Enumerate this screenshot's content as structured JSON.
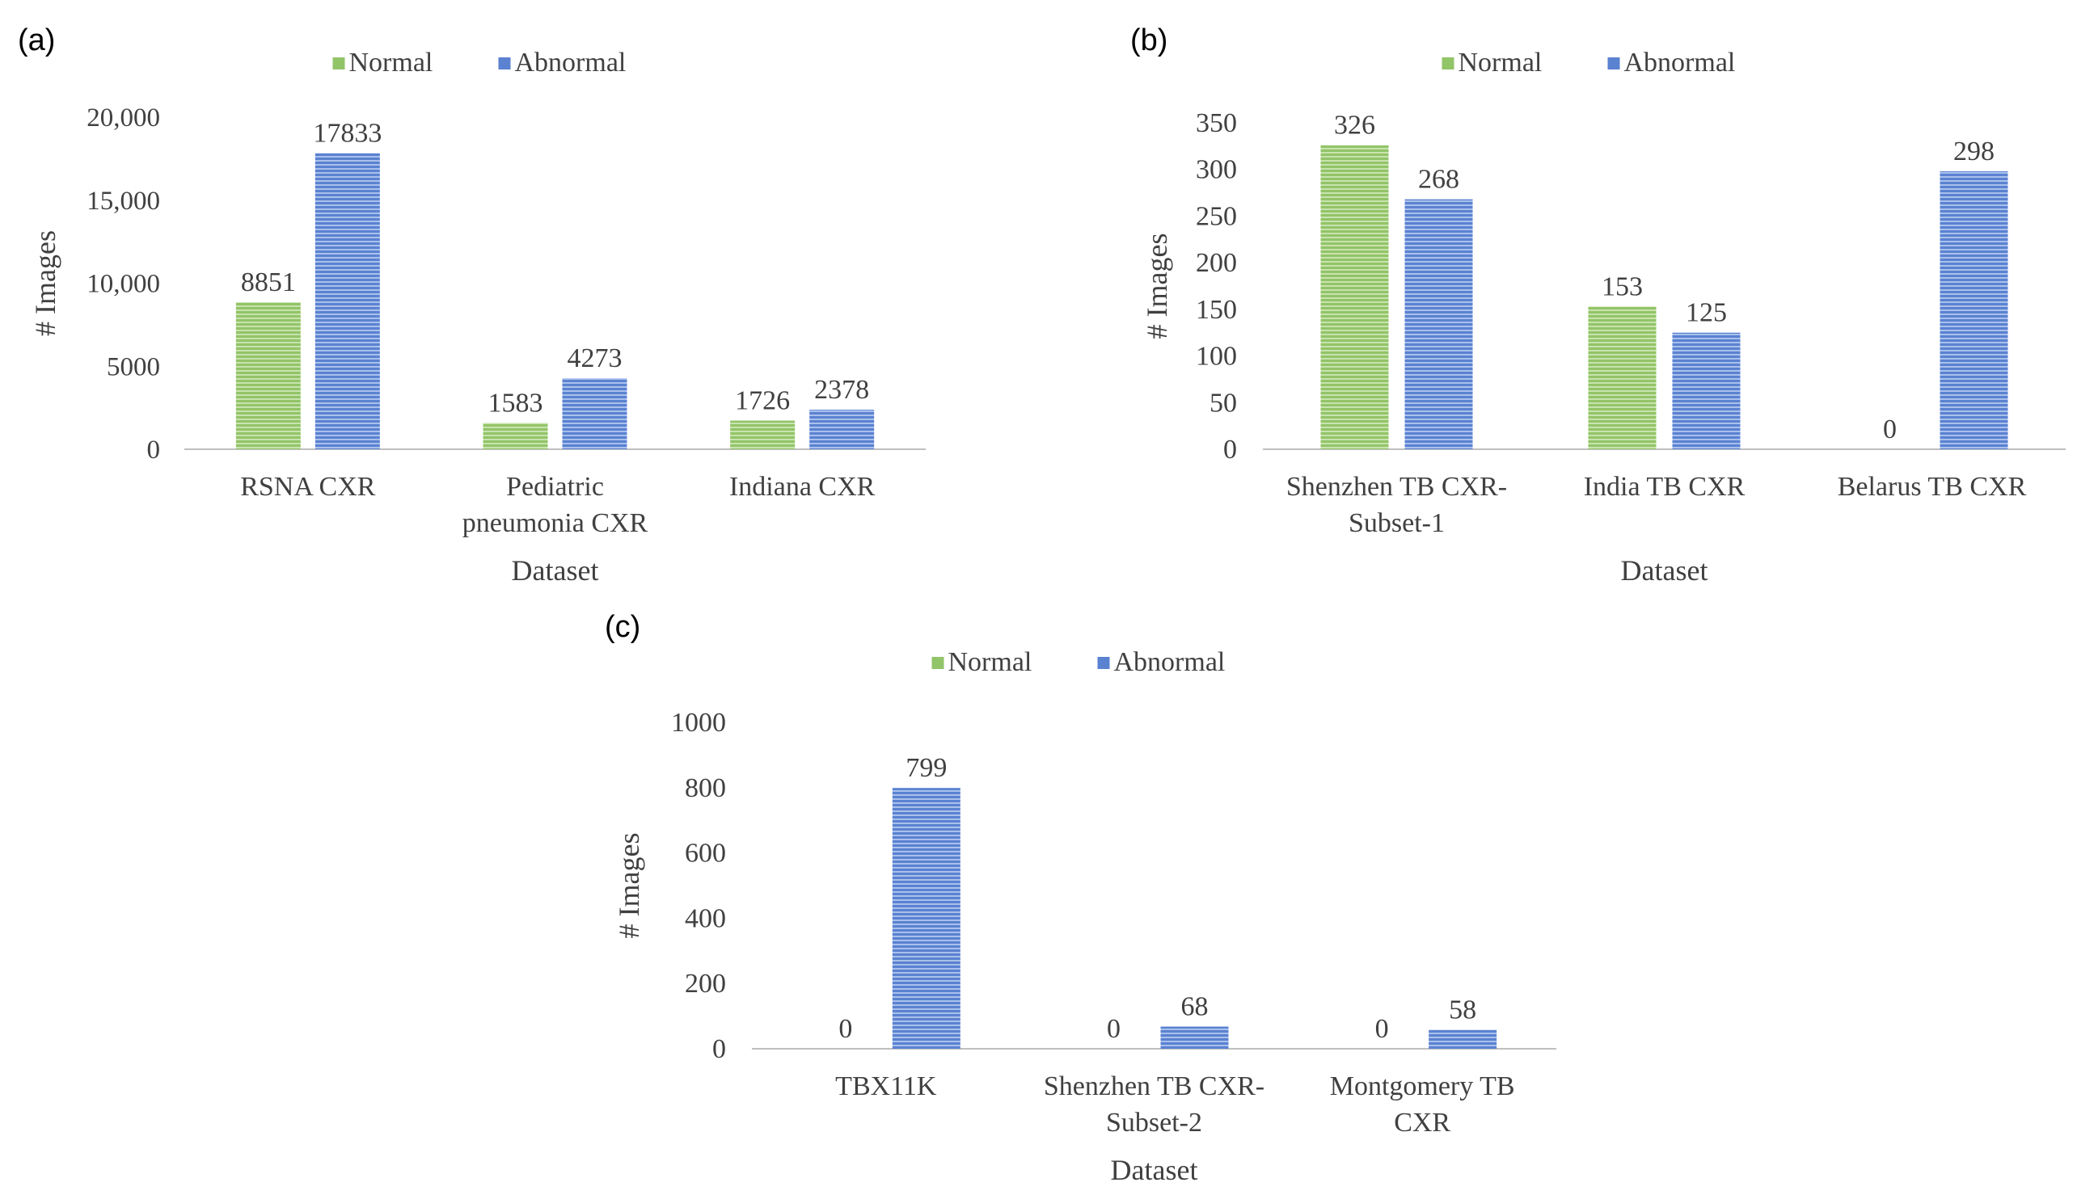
{
  "colors": {
    "normal": "#92c468",
    "abnormal": "#5b82d1",
    "normal_stripe": "#c8e3ae",
    "abnormal_stripe": "#a9c0ec",
    "axis": "#bfbfbf",
    "text": "#404040"
  },
  "chart_data": [
    {
      "panel": "(a)",
      "type": "bar",
      "title": "",
      "xlabel": "Dataset",
      "ylabel": "# Images",
      "ylim": [
        0,
        20000
      ],
      "yticks": [
        0,
        5000,
        10000,
        15000,
        20000
      ],
      "ytick_labels": [
        "0",
        "5000",
        "10,000",
        "15,000",
        "20,000"
      ],
      "categories": [
        [
          "RSNA CXR"
        ],
        [
          "Pediatric",
          "pneumonia CXR"
        ],
        [
          "Indiana CXR"
        ]
      ],
      "series": [
        {
          "name": "Normal",
          "values": [
            8851,
            1583,
            1726
          ]
        },
        {
          "name": "Abnormal",
          "values": [
            17833,
            4273,
            2378
          ]
        }
      ],
      "legend": "top-center"
    },
    {
      "panel": "(b)",
      "type": "bar",
      "title": "",
      "xlabel": "Dataset",
      "ylabel": "# Images",
      "ylim": [
        0,
        350
      ],
      "yticks": [
        0,
        50,
        100,
        150,
        200,
        250,
        300,
        350
      ],
      "ytick_labels": [
        "0",
        "50",
        "100",
        "150",
        "200",
        "250",
        "300",
        "350"
      ],
      "categories": [
        [
          "Shenzhen TB CXR-",
          "Subset-1"
        ],
        [
          "India TB CXR"
        ],
        [
          "Belarus TB CXR"
        ]
      ],
      "series": [
        {
          "name": "Normal",
          "values": [
            326,
            153,
            0
          ]
        },
        {
          "name": "Abnormal",
          "values": [
            268,
            125,
            298
          ]
        }
      ],
      "legend": "top-center"
    },
    {
      "panel": "(c)",
      "type": "bar",
      "title": "",
      "xlabel": "Dataset",
      "ylabel": "# Images",
      "ylim": [
        0,
        1000
      ],
      "yticks": [
        0,
        200,
        400,
        600,
        800,
        1000
      ],
      "ytick_labels": [
        "0",
        "200",
        "400",
        "600",
        "800",
        "1000"
      ],
      "categories": [
        [
          "TBX11K"
        ],
        [
          "Shenzhen TB CXR-",
          "Subset-2"
        ],
        [
          "Montgomery TB",
          "CXR"
        ]
      ],
      "series": [
        {
          "name": "Normal",
          "values": [
            0,
            0,
            0
          ]
        },
        {
          "name": "Abnormal",
          "values": [
            799,
            68,
            58
          ]
        }
      ],
      "legend": "top-center"
    }
  ]
}
